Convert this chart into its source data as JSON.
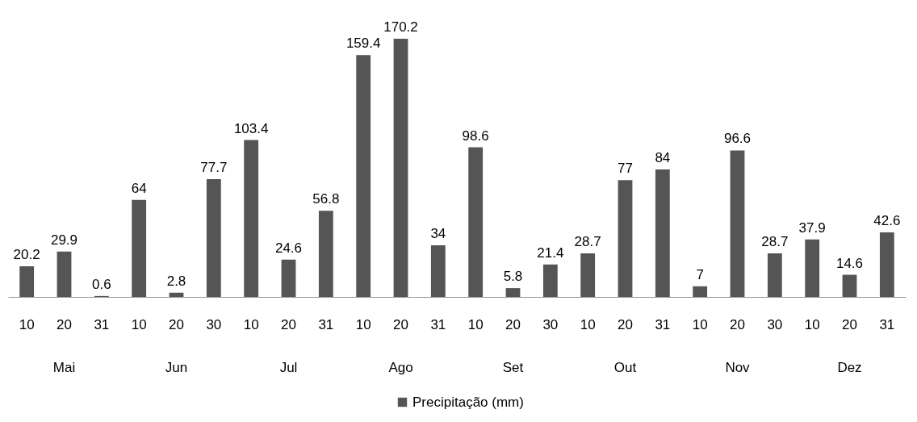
{
  "chart_data": {
    "type": "bar",
    "categories": [
      "10",
      "20",
      "31",
      "10",
      "20",
      "30",
      "10",
      "20",
      "31",
      "10",
      "20",
      "31",
      "10",
      "20",
      "30",
      "10",
      "20",
      "31",
      "10",
      "20",
      "30",
      "10",
      "20",
      "31"
    ],
    "series": [
      {
        "name": "Precipitação (mm)",
        "color": "#555555",
        "values": [
          20.2,
          29.9,
          0.6,
          64,
          2.8,
          77.7,
          103.4,
          24.6,
          56.8,
          159.4,
          170.2,
          34,
          98.6,
          5.8,
          21.4,
          28.7,
          77,
          84,
          7,
          96.6,
          28.7,
          37.9,
          14.6,
          42.6
        ]
      }
    ],
    "annotations": [
      "Mai",
      "Jun",
      "Jul",
      "Ago",
      "Set",
      "Out",
      "Nov",
      "Dez"
    ],
    "data_labels": true,
    "legend": "bottom"
  }
}
